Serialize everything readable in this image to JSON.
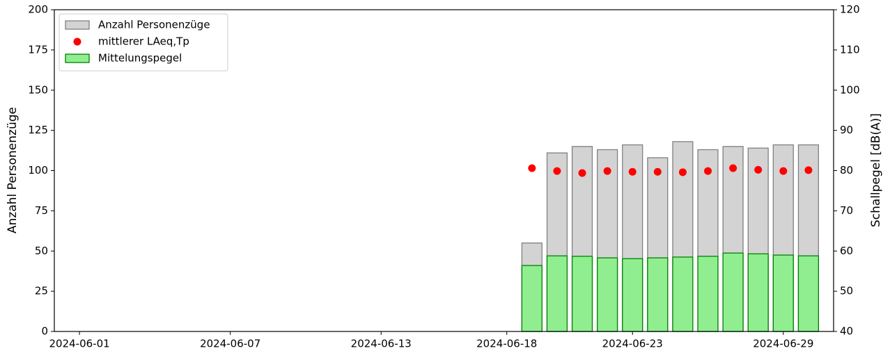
{
  "chart_data": {
    "type": "bar",
    "x": [
      "2024-06-19",
      "2024-06-20",
      "2024-06-21",
      "2024-06-22",
      "2024-06-23",
      "2024-06-24",
      "2024-06-25",
      "2024-06-26",
      "2024-06-27",
      "2024-06-28",
      "2024-06-29",
      "2024-06-30"
    ],
    "xlim": [
      "2024-05-31",
      "2024-07-01"
    ],
    "xticks": [
      "2024-06-01",
      "2024-06-07",
      "2024-06-13",
      "2024-06-18",
      "2024-06-23",
      "2024-06-29"
    ],
    "ylim": [
      0,
      200
    ],
    "yticks": [
      0,
      25,
      50,
      75,
      100,
      125,
      150,
      175,
      200
    ],
    "y2lim": [
      40,
      120
    ],
    "y2ticks": [
      40,
      50,
      60,
      70,
      80,
      90,
      100,
      110,
      120
    ],
    "ylabel": "Anzahl Personenzüge",
    "y2label": "Schallpegel [dB(A)]",
    "legend": "upper left",
    "series": [
      {
        "name": "Anzahl Personenzüge",
        "type": "bar",
        "color": "#d3d3d3",
        "edgecolor": "#808080",
        "values": [
          55,
          111,
          115,
          113,
          116,
          108,
          118,
          113,
          115,
          114,
          116,
          116
        ]
      },
      {
        "name": "mittlerer LAeq,Tp",
        "type": "scatter",
        "color": "#ff0000",
        "axis": "y2",
        "values": [
          80.6,
          79.9,
          79.4,
          79.9,
          79.7,
          79.7,
          79.6,
          79.9,
          80.6,
          80.2,
          79.9,
          80.1
        ]
      },
      {
        "name": "Mittelungspegel",
        "type": "bar",
        "color": "#90ee90",
        "edgecolor": "#008000",
        "axis": "y2",
        "values": [
          56.4,
          58.8,
          58.7,
          58.3,
          58.1,
          58.3,
          58.5,
          58.7,
          59.5,
          59.3,
          59.0,
          58.8
        ]
      }
    ]
  }
}
